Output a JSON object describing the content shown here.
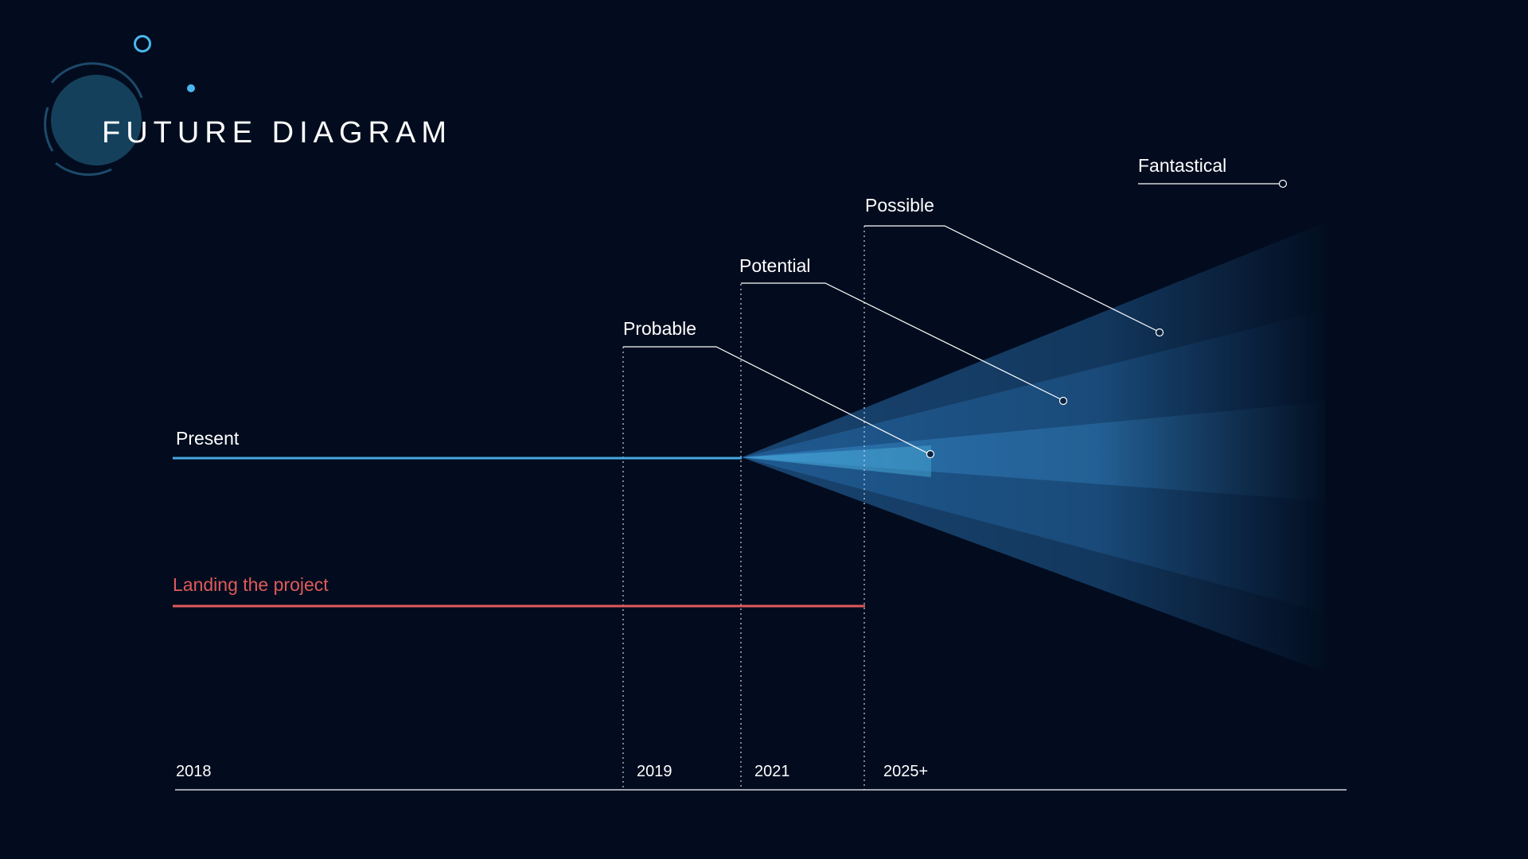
{
  "title": "FUTURE DIAGRAM",
  "timeline": {
    "present_label": "Present",
    "landing_label": "Landing the project",
    "years": [
      "2018",
      "2019",
      "2021",
      "2025+"
    ]
  },
  "cone_labels": {
    "probable": "Probable",
    "potential": "Potential",
    "possible": "Possible",
    "fantastical": "Fantastical"
  },
  "colors": {
    "background": "#020c1e",
    "present_line": "#49a6e0",
    "landing_line": "#e05a5a",
    "cone_core": "#4aaee0",
    "text": "#ffffff",
    "decor_circle": "#15405c",
    "decor_accent": "#4ab8ee"
  }
}
